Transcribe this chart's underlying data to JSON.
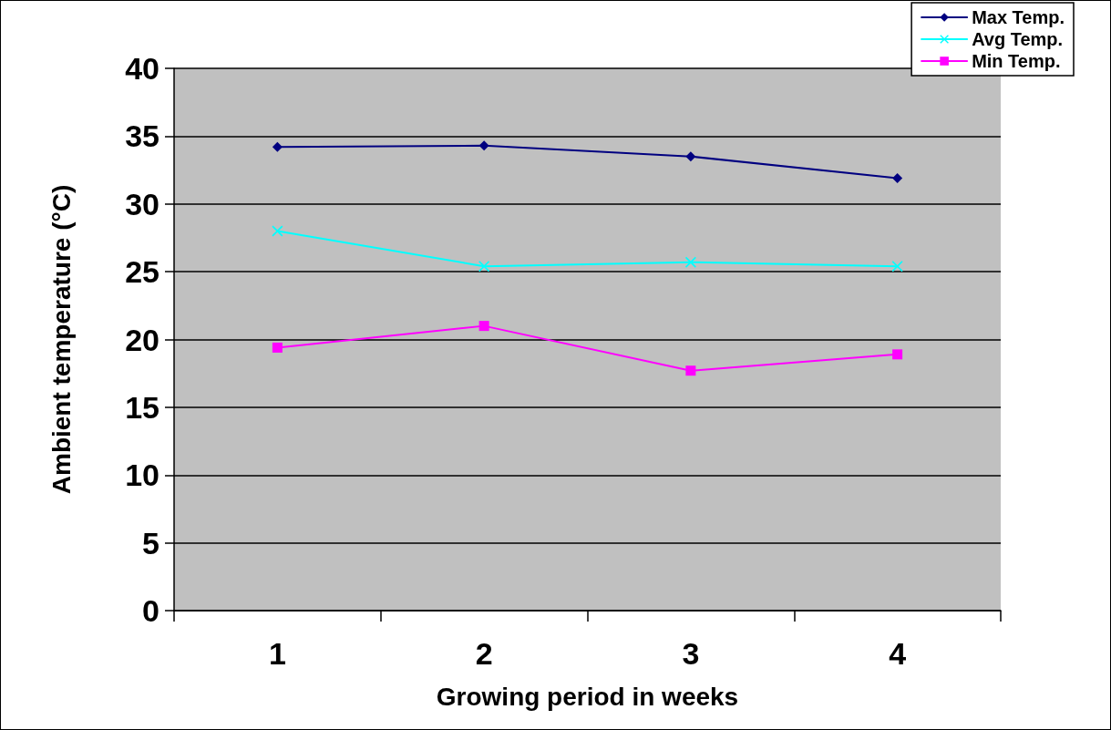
{
  "chart_data": {
    "type": "line",
    "xlabel": "Growing period in weeks",
    "ylabel": "Ambient temperature (°C)",
    "categories": [
      "1",
      "2",
      "3",
      "4"
    ],
    "series": [
      {
        "name": "Max Temp.",
        "color": "#000080",
        "marker": "diamond",
        "values": [
          34.2,
          34.3,
          33.5,
          31.9
        ]
      },
      {
        "name": "Avg Temp.",
        "color": "#00ffff",
        "marker": "cross",
        "values": [
          28.0,
          25.4,
          25.7,
          25.4
        ]
      },
      {
        "name": "Min Temp.",
        "color": "#ff00ff",
        "marker": "square",
        "values": [
          19.4,
          21.0,
          17.7,
          18.9
        ]
      }
    ],
    "ylim": [
      0,
      40
    ],
    "yticks": [
      0,
      5,
      10,
      15,
      20,
      25,
      30,
      35,
      40
    ],
    "grid": "y",
    "legend": "top right",
    "line_style": "solid"
  }
}
